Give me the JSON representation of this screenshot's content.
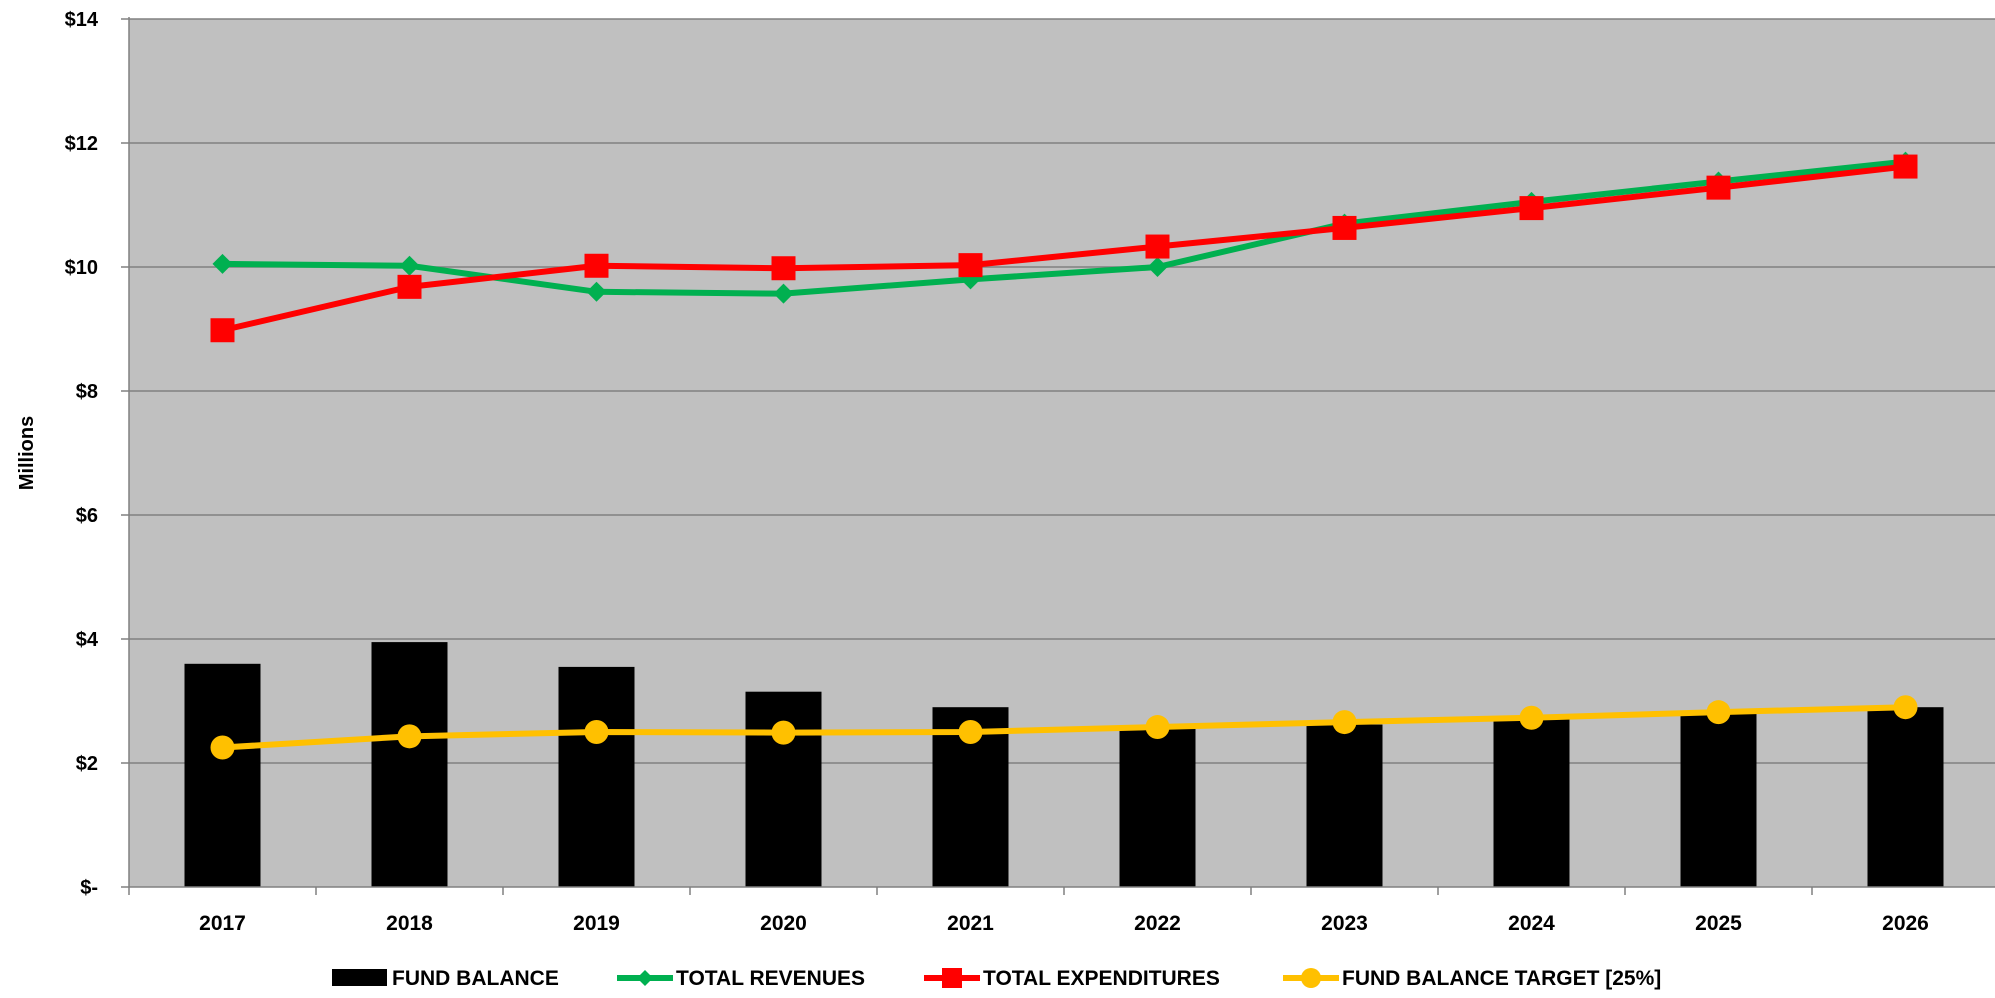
{
  "chart_data": {
    "type": "bar",
    "categories": [
      "2017",
      "2018",
      "2019",
      "2020",
      "2021",
      "2022",
      "2023",
      "2024",
      "2025",
      "2026"
    ],
    "ylabel": "Millions",
    "ylim": [
      0,
      14
    ],
    "yticks": [
      0,
      2,
      4,
      6,
      8,
      10,
      12,
      14
    ],
    "ytick_labels": [
      "$-",
      "$2",
      "$4",
      "$6",
      "$8",
      "$10",
      "$12",
      "$14"
    ],
    "grid": true,
    "legend_position": "bottom",
    "plot_background": "#c0c0c0",
    "series": [
      {
        "name": "FUND BALANCE",
        "kind": "bar",
        "color": "#000000",
        "values": [
          3.6,
          3.95,
          3.55,
          3.15,
          2.9,
          2.6,
          2.62,
          2.72,
          2.8,
          2.9
        ]
      },
      {
        "name": "TOTAL REVENUES",
        "kind": "line",
        "marker": "diamond",
        "color": "#00b050",
        "values": [
          10.05,
          10.02,
          9.6,
          9.57,
          9.8,
          10.0,
          10.7,
          11.05,
          11.38,
          11.7
        ]
      },
      {
        "name": "TOTAL EXPENDITURES",
        "kind": "line",
        "marker": "square",
        "color": "#ff0000",
        "values": [
          8.98,
          9.68,
          10.02,
          9.98,
          10.03,
          10.33,
          10.63,
          10.95,
          11.28,
          11.62
        ]
      },
      {
        "name": "FUND BALANCE TARGET [25%]",
        "kind": "line",
        "marker": "circle",
        "color": "#ffc000",
        "values": [
          2.25,
          2.43,
          2.5,
          2.49,
          2.5,
          2.58,
          2.66,
          2.73,
          2.82,
          2.9
        ]
      }
    ]
  }
}
